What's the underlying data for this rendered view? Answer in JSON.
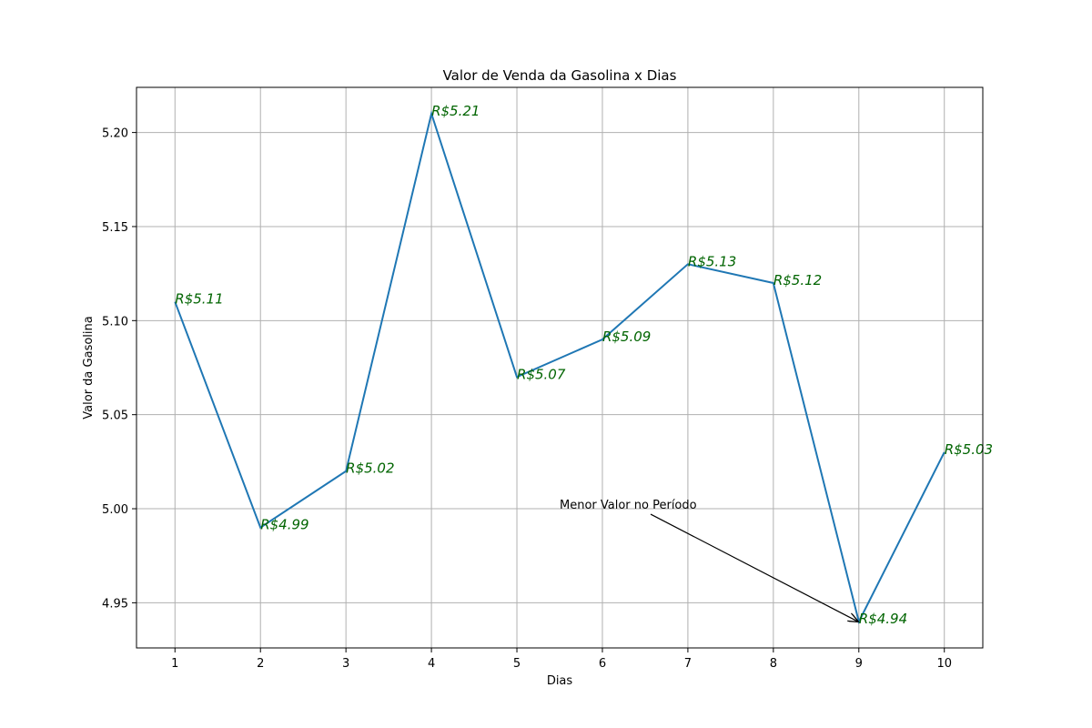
{
  "chart_data": {
    "type": "line",
    "title": "Valor de Venda da Gasolina x Dias",
    "xlabel": "Dias",
    "ylabel": "Valor da Gasolina",
    "x": [
      1,
      2,
      3,
      4,
      5,
      6,
      7,
      8,
      9,
      10
    ],
    "series": [
      {
        "values": [
          5.11,
          4.99,
          5.02,
          5.21,
          5.07,
          5.09,
          5.13,
          5.12,
          4.94,
          5.03
        ]
      }
    ],
    "data_labels": [
      "R$5.11",
      "R$4.99",
      "R$5.02",
      "R$5.21",
      "R$5.07",
      "R$5.09",
      "R$5.13",
      "R$5.12",
      "R$4.94",
      "R$5.03"
    ],
    "xticks": [
      "1",
      "2",
      "3",
      "4",
      "5",
      "6",
      "7",
      "8",
      "9",
      "10"
    ],
    "yticks": [
      "4.95",
      "5.00",
      "5.05",
      "5.10",
      "5.15",
      "5.20"
    ],
    "xlim": [
      0.55,
      10.45
    ],
    "ylim": [
      4.926,
      5.224
    ],
    "grid": true,
    "annotation": {
      "text": "Menor Valor no Período",
      "text_at": [
        5.5,
        5.0
      ],
      "points_to": [
        9,
        4.94
      ]
    },
    "colors": {
      "line": "#1f77b4",
      "data_label": "#006400",
      "grid": "#b0b0b0",
      "axes": "#000000"
    }
  }
}
